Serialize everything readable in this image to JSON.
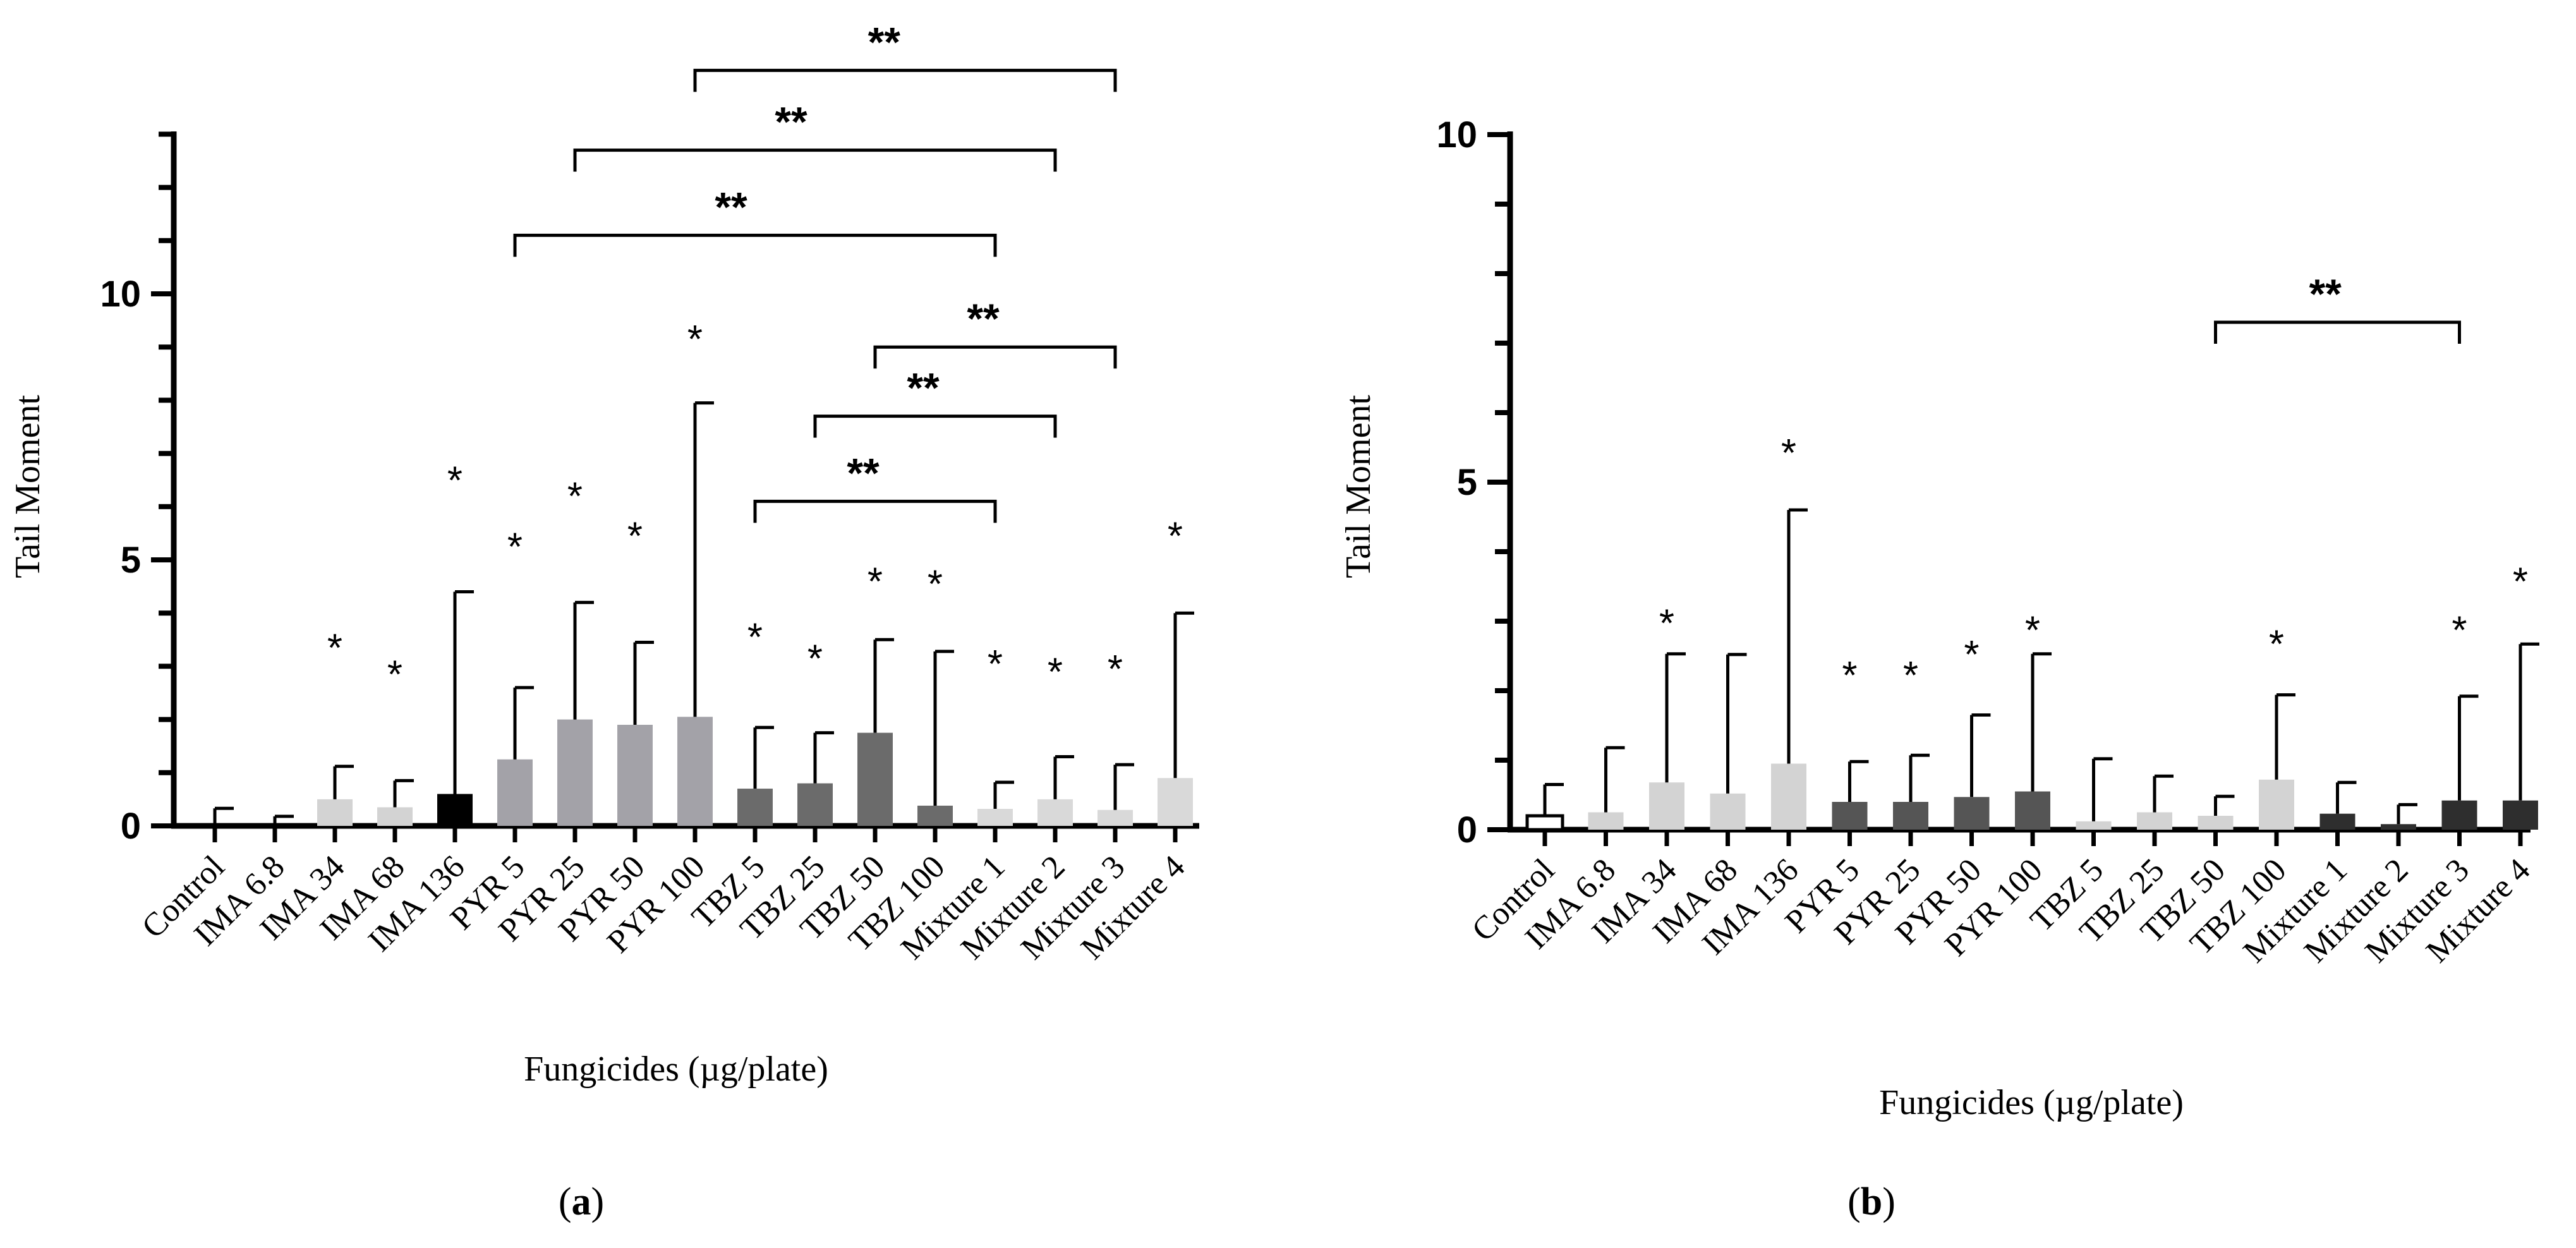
{
  "chart_data": [
    {
      "panel": "a",
      "type": "bar",
      "panel_label": "(a)",
      "panel_letter": "a",
      "xlabel": "Fungicides (µg/plate)",
      "ylabel": "Tail Moment",
      "ylim": [
        0,
        13
      ],
      "yticks": [
        0,
        5,
        10
      ],
      "minor_tick_step": 1,
      "categories": [
        "Control",
        "IMA 6.8",
        "IMA 34",
        "IMA 68",
        "IMA 136",
        "PYR 5",
        "PYR 25",
        "PYR 50",
        "PYR 100",
        "TBZ 5",
        "TBZ 25",
        "TBZ 50",
        "TBZ 100",
        "Mixture 1",
        "Mixture 2",
        "Mixture 3",
        "Mixture 4"
      ],
      "values": [
        0.05,
        0.05,
        0.5,
        0.35,
        0.6,
        1.25,
        2.0,
        1.9,
        2.05,
        0.7,
        0.8,
        1.75,
        0.38,
        0.32,
        0.5,
        0.3,
        0.9
      ],
      "errors": [
        0.28,
        0.13,
        0.62,
        0.5,
        3.8,
        1.35,
        2.2,
        1.55,
        5.9,
        1.15,
        0.95,
        1.75,
        2.9,
        0.5,
        0.8,
        0.85,
        3.1
      ],
      "colors": [
        "#000000",
        "#000000",
        "#d3d3d3",
        "#d3d3d3",
        "#000000",
        "#a3a2a8",
        "#a3a2a8",
        "#a3a2a8",
        "#a3a2a8",
        "#6b6b6b",
        "#6b6b6b",
        "#6b6b6b",
        "#6b6b6b",
        "#d9d9d9",
        "#d9d9d9",
        "#d9d9d9",
        "#d9d9d9"
      ],
      "outlined": [
        false,
        false,
        false,
        false,
        false,
        false,
        false,
        false,
        false,
        false,
        false,
        false,
        false,
        false,
        false,
        false,
        false
      ],
      "stars": [
        {
          "category": 2,
          "y": 3.45,
          "label": "*"
        },
        {
          "category": 3,
          "y": 2.95,
          "label": "*"
        },
        {
          "category": 4,
          "y": 6.6,
          "label": "*"
        },
        {
          "category": 5,
          "y": 5.35,
          "label": "*"
        },
        {
          "category": 6,
          "y": 6.3,
          "label": "*"
        },
        {
          "category": 7,
          "y": 5.55,
          "label": "*"
        },
        {
          "category": 8,
          "y": 9.25,
          "label": "*"
        },
        {
          "category": 9,
          "y": 3.65,
          "label": "*"
        },
        {
          "category": 10,
          "y": 3.25,
          "label": "*"
        },
        {
          "category": 11,
          "y": 4.7,
          "label": "*"
        },
        {
          "category": 12,
          "y": 4.65,
          "label": "*"
        },
        {
          "category": 13,
          "y": 3.15,
          "label": "*"
        },
        {
          "category": 14,
          "y": 3.0,
          "label": "*"
        },
        {
          "category": 15,
          "y": 3.05,
          "label": "*"
        },
        {
          "category": 16,
          "y": 5.55,
          "label": "*"
        }
      ],
      "brackets": [
        {
          "from": 9,
          "to": 13,
          "y": 6.1,
          "label": "**"
        },
        {
          "from": 10,
          "to": 14,
          "y": 7.7,
          "label": "**"
        },
        {
          "from": 11,
          "to": 15,
          "y": 9.0,
          "label": "**"
        },
        {
          "from": 5,
          "to": 13,
          "y": 11.1,
          "label": "**"
        },
        {
          "from": 6,
          "to": 14,
          "y": 12.7,
          "label": "**"
        },
        {
          "from": 8,
          "to": 15,
          "y": 14.2,
          "label": "**"
        }
      ]
    },
    {
      "panel": "b",
      "type": "bar",
      "panel_label": "(b)",
      "panel_letter": "b",
      "xlabel": "Fungicides (µg/plate)",
      "ylabel": "Tail Moment",
      "ylim": [
        0,
        10
      ],
      "yticks": [
        0,
        5,
        10
      ],
      "minor_tick_step": 1,
      "categories": [
        "Control",
        "IMA 6.8",
        "IMA 34",
        "IMA 68",
        "IMA 136",
        "PYR 5",
        "PYR 25",
        "PYR 50",
        "PYR 100",
        "TBZ 5",
        "TBZ 25",
        "TBZ 50",
        "TBZ 100",
        "Mixture 1",
        "Mixture 2",
        "Mixture 3",
        "Mixture 4"
      ],
      "values": [
        0.2,
        0.25,
        0.68,
        0.52,
        0.95,
        0.4,
        0.4,
        0.47,
        0.55,
        0.12,
        0.25,
        0.2,
        0.72,
        0.23,
        0.08,
        0.42,
        0.42
      ],
      "errors": [
        0.45,
        0.93,
        1.85,
        2.0,
        3.65,
        0.58,
        0.67,
        1.18,
        1.98,
        0.9,
        0.52,
        0.28,
        1.22,
        0.45,
        0.28,
        1.5,
        2.25
      ],
      "colors": [
        "#ffffff",
        "#d3d3d3",
        "#d3d3d3",
        "#d3d3d3",
        "#d3d3d3",
        "#555555",
        "#555555",
        "#555555",
        "#555555",
        "#d3d3d3",
        "#d3d3d3",
        "#d3d3d3",
        "#d3d3d3",
        "#2e2e2e",
        "#2e2e2e",
        "#2e2e2e",
        "#2e2e2e"
      ],
      "outlined": [
        true,
        false,
        false,
        false,
        false,
        false,
        false,
        false,
        false,
        false,
        false,
        false,
        false,
        false,
        false,
        false,
        false
      ],
      "stars": [
        {
          "category": 2,
          "y": 3.05,
          "label": "*"
        },
        {
          "category": 4,
          "y": 5.5,
          "label": "*"
        },
        {
          "category": 5,
          "y": 2.3,
          "label": "*"
        },
        {
          "category": 6,
          "y": 2.3,
          "label": "*"
        },
        {
          "category": 7,
          "y": 2.6,
          "label": "*"
        },
        {
          "category": 8,
          "y": 2.95,
          "label": "*"
        },
        {
          "category": 12,
          "y": 2.75,
          "label": "*"
        },
        {
          "category": 15,
          "y": 2.95,
          "label": "*"
        },
        {
          "category": 16,
          "y": 3.65,
          "label": "*"
        }
      ],
      "brackets": [
        {
          "from": 11,
          "to": 15,
          "y": 7.3,
          "label": "**"
        }
      ]
    }
  ]
}
